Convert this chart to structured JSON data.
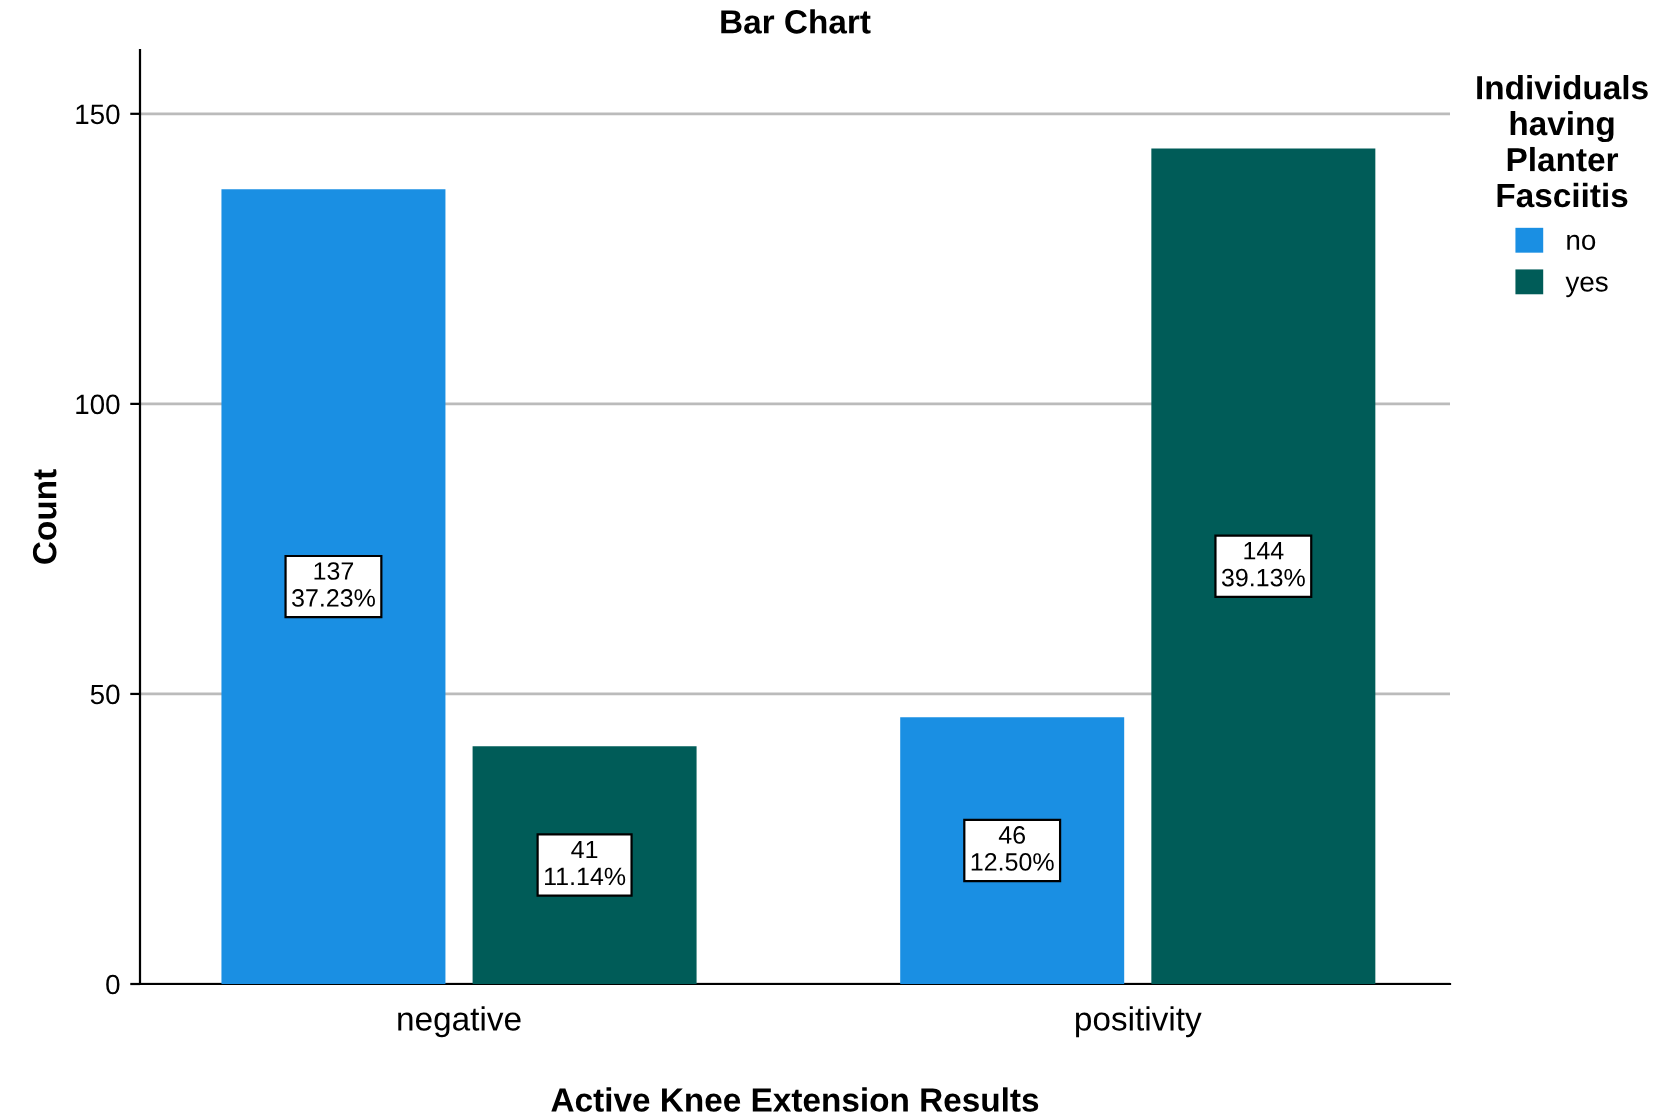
{
  "chart_data": {
    "type": "bar",
    "title": "Bar Chart",
    "xlabel": "Active Knee Extension Results",
    "ylabel": "Count",
    "legend_title": "Individuals\nhaving\nPlanter\nFasciitis",
    "categories": [
      "negative",
      "positivity"
    ],
    "series": [
      {
        "name": "no",
        "color": "#1a8fe3",
        "values": [
          137,
          46
        ],
        "value_labels": [
          "137\n37.23%",
          "46\n12.50%"
        ]
      },
      {
        "name": "yes",
        "color": "#005c58",
        "values": [
          41,
          144
        ],
        "value_labels": [
          "41\n11.14%",
          "144\n39.13%"
        ]
      }
    ],
    "ylim": [
      0,
      161
    ],
    "yticks": [
      0,
      50,
      100,
      150
    ],
    "grid": "y",
    "legend": "top right"
  }
}
